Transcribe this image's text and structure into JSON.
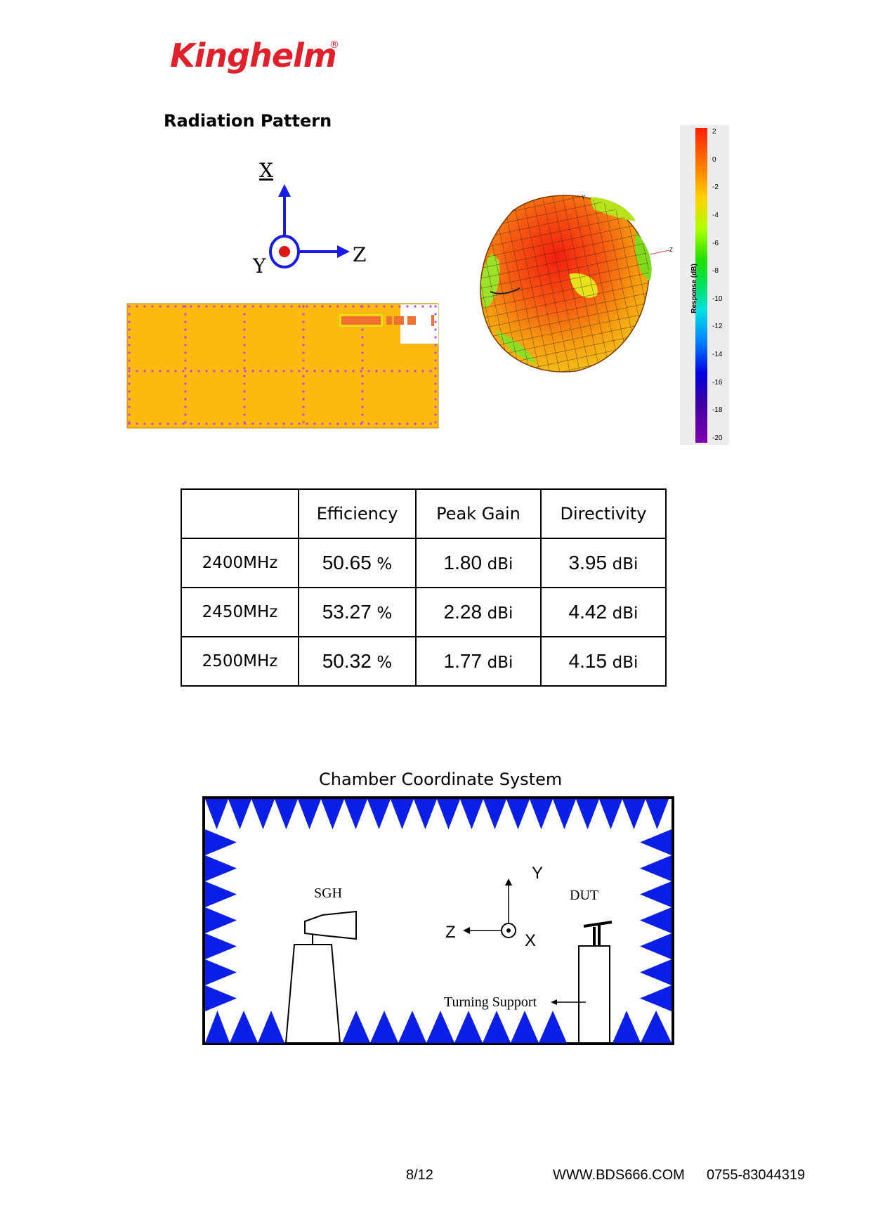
{
  "header": {
    "logo_text": "Kinghelm",
    "logo_mark": "®",
    "brand_color": "#e0212b"
  },
  "radiation": {
    "title": "Radiation Pattern",
    "axes": {
      "x": "X",
      "y": "Y",
      "z": "Z"
    },
    "plot_axis_labels": {
      "y": "Y",
      "z": "Z"
    },
    "legend": {
      "title": "Response (dB)",
      "ticks": [
        "2",
        "0",
        "-2",
        "-4",
        "-6",
        "-8",
        "-10",
        "-12",
        "-14",
        "-16",
        "-18",
        "-20"
      ]
    }
  },
  "performance_table": {
    "headers": [
      "",
      "Efficiency",
      "Peak Gain",
      "Directivity"
    ],
    "rows": [
      {
        "freq": "2400MHz",
        "efficiency": "50.65",
        "eff_unit": "%",
        "peak_gain": "1.80",
        "gain_unit": "dBi",
        "directivity": "3.95",
        "dir_unit": "dBi"
      },
      {
        "freq": "2450MHz",
        "efficiency": "53.27",
        "eff_unit": "%",
        "peak_gain": "2.28",
        "gain_unit": "dBi",
        "directivity": "4.42",
        "dir_unit": "dBi"
      },
      {
        "freq": "2500MHz",
        "efficiency": "50.32",
        "eff_unit": "%",
        "peak_gain": "1.77",
        "gain_unit": "dBi",
        "directivity": "4.15",
        "dir_unit": "dBi"
      }
    ]
  },
  "chamber": {
    "title": "Chamber Coordinate System",
    "sgh_label": "SGH",
    "dut_label": "DUT",
    "support_label": "Turning  Support",
    "axes": {
      "y": "Y",
      "z": "Z",
      "x": "X"
    },
    "absorber_color": "#0b1ee6"
  },
  "footer": {
    "page": "8/12",
    "website": "WWW.BDS666.COM",
    "phone": "0755-83044319"
  }
}
